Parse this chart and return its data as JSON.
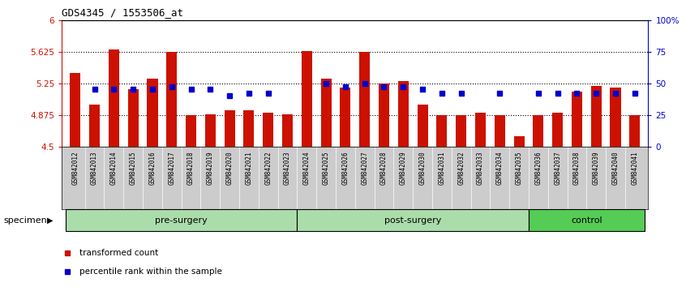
{
  "title": "GDS4345 / 1553506_at",
  "samples": [
    "GSM842012",
    "GSM842013",
    "GSM842014",
    "GSM842015",
    "GSM842016",
    "GSM842017",
    "GSM842018",
    "GSM842019",
    "GSM842020",
    "GSM842021",
    "GSM842022",
    "GSM842023",
    "GSM842024",
    "GSM842025",
    "GSM842026",
    "GSM842027",
    "GSM842028",
    "GSM842029",
    "GSM842030",
    "GSM842031",
    "GSM842032",
    "GSM842033",
    "GSM842034",
    "GSM842035",
    "GSM842036",
    "GSM842037",
    "GSM842038",
    "GSM842039",
    "GSM842040",
    "GSM842041"
  ],
  "bar_values": [
    5.37,
    5.0,
    5.65,
    5.18,
    5.3,
    5.62,
    4.87,
    4.88,
    4.93,
    4.93,
    4.9,
    4.88,
    5.63,
    5.3,
    5.2,
    5.62,
    5.25,
    5.28,
    5.0,
    4.87,
    4.87,
    4.9,
    4.87,
    4.62,
    4.87,
    4.9,
    5.15,
    5.22,
    5.2,
    4.87
  ],
  "percentile_pcts": [
    null,
    45,
    45,
    45,
    45,
    47,
    45,
    45,
    40,
    42,
    42,
    null,
    null,
    50,
    47,
    50,
    47,
    47,
    45,
    42,
    42,
    null,
    42,
    null,
    42,
    42,
    42,
    42,
    42,
    42
  ],
  "ymin": 4.5,
  "ymax": 6.0,
  "yticks": [
    4.5,
    4.875,
    5.25,
    5.625,
    6.0
  ],
  "ytick_labels": [
    "4.5",
    "4.875",
    "5.25",
    "5.625",
    "6"
  ],
  "right_yticks": [
    0,
    25,
    50,
    75,
    100
  ],
  "right_ytick_labels": [
    "0",
    "25",
    "50",
    "75",
    "100%"
  ],
  "bar_color": "#cc1100",
  "percentile_color": "#0000cc",
  "dotted_lines": [
    4.875,
    5.25,
    5.625
  ],
  "group_labels": [
    "pre-surgery",
    "post-surgery",
    "control"
  ],
  "group_starts": [
    0,
    12,
    24
  ],
  "group_ends": [
    12,
    24,
    30
  ],
  "group_colors": [
    "#aaddaa",
    "#aaddaa",
    "#55cc55"
  ],
  "specimen_label": "specimen",
  "legend_items": [
    "transformed count",
    "percentile rank within the sample"
  ],
  "legend_colors": [
    "#cc1100",
    "#0000cc"
  ],
  "xtick_bg_color": "#cccccc"
}
